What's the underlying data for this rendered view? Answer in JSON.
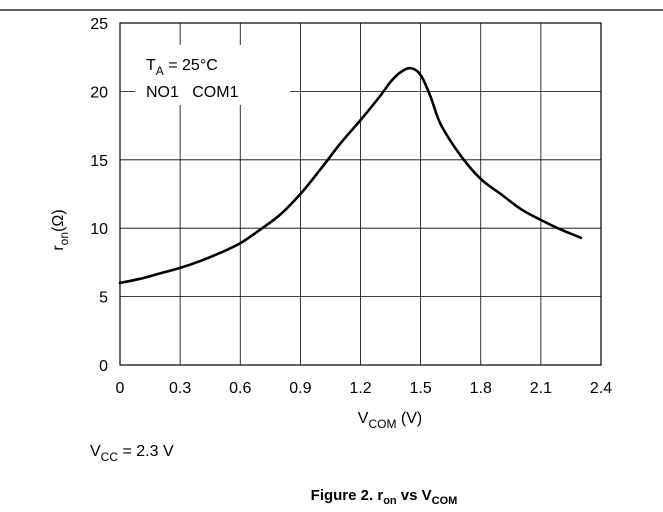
{
  "chart_data": {
    "type": "line",
    "title": "",
    "caption": {
      "prefix": "Figure 2. r",
      "sub1": "on",
      "mid": " vs V",
      "sub2": "COM"
    },
    "xlabel": {
      "main": "V",
      "sub": "COM",
      "rest": " (V)"
    },
    "ylabel": {
      "main": "r",
      "sub": "on",
      "rest": "(Ω)"
    },
    "xlim": [
      0,
      2.4
    ],
    "ylim": [
      0,
      25
    ],
    "xticks": [
      0,
      0.3,
      0.6,
      0.9,
      1.2,
      1.5,
      1.8,
      2.1,
      2.4
    ],
    "xtick_labels": [
      "0",
      "0.3",
      "0.6",
      "0.9",
      "1.2",
      "1.5",
      "1.8",
      "2.1",
      "2.4"
    ],
    "yticks": [
      0,
      5,
      10,
      15,
      20,
      25
    ],
    "ytick_labels": [
      "0",
      "5",
      "10",
      "15",
      "20",
      "25"
    ],
    "grid": true,
    "annotations": {
      "ta": {
        "main": "T",
        "sub": "A",
        "rest": " = 25°C"
      },
      "channel": "NO1   COM1",
      "vcc": {
        "main": "V",
        "sub": "CC",
        "rest": " = 2.3 V"
      }
    },
    "series": [
      {
        "x": [
          0,
          0.1,
          0.2,
          0.3,
          0.4,
          0.5,
          0.6,
          0.7,
          0.8,
          0.9,
          1.0,
          1.1,
          1.2,
          1.3,
          1.35,
          1.4,
          1.45,
          1.5,
          1.55,
          1.6,
          1.7,
          1.8,
          1.9,
          2.0,
          2.1,
          2.2,
          2.3
        ],
        "y": [
          6.0,
          6.3,
          6.7,
          7.1,
          7.6,
          8.2,
          8.9,
          9.9,
          11.0,
          12.5,
          14.3,
          16.2,
          17.9,
          19.7,
          20.7,
          21.4,
          21.7,
          21.2,
          19.6,
          17.6,
          15.3,
          13.6,
          12.5,
          11.4,
          10.6,
          9.9,
          9.3
        ]
      }
    ]
  }
}
